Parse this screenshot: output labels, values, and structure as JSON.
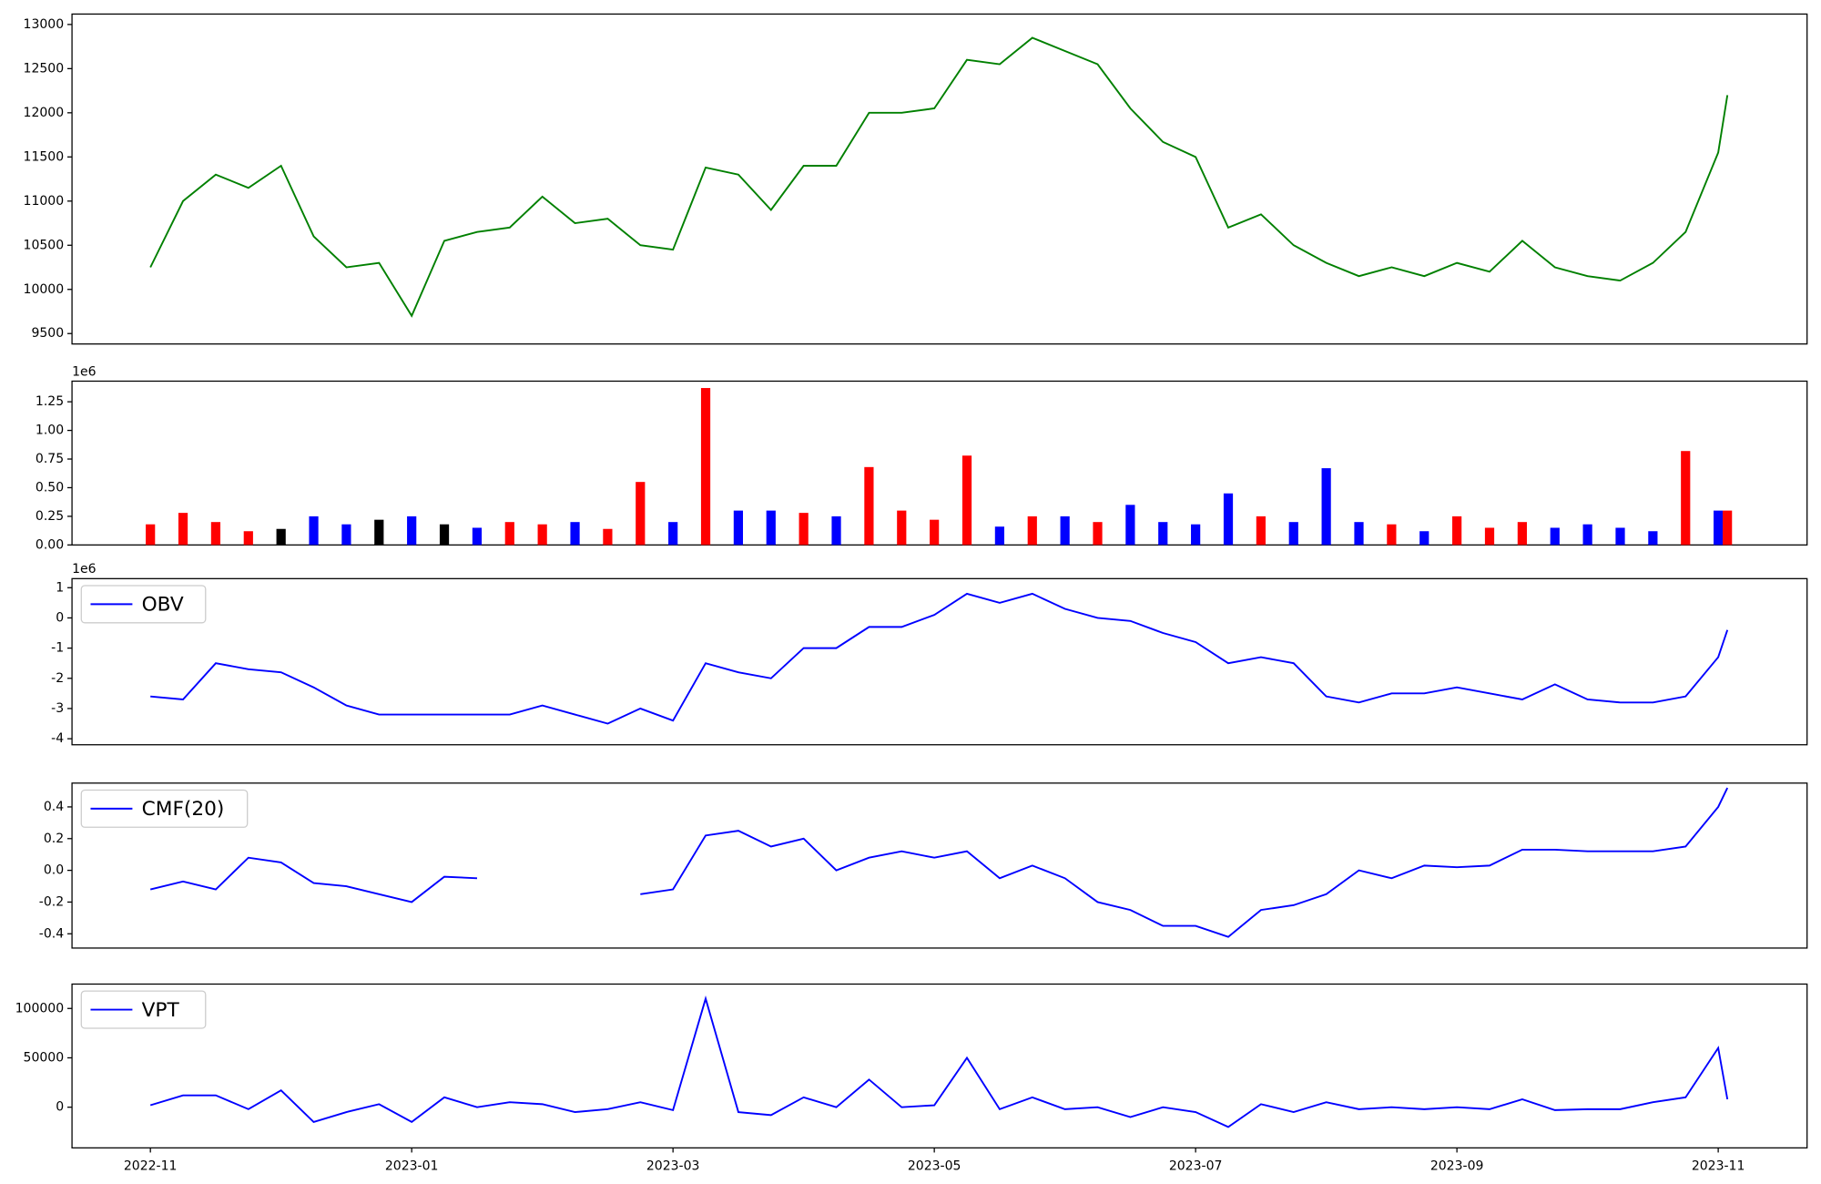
{
  "chart_data": [
    {
      "type": "line",
      "color": "green",
      "x": [
        0,
        0.25,
        0.5,
        0.75,
        1,
        1.25,
        1.5,
        1.75,
        2,
        2.25,
        2.5,
        2.75,
        3,
        3.25,
        3.5,
        3.75,
        4,
        4.25,
        4.5,
        4.75,
        5,
        5.25,
        5.5,
        5.75,
        6,
        6.25,
        6.5,
        6.75,
        7,
        7.25,
        7.5,
        7.75,
        8,
        8.25,
        8.5,
        8.75,
        9,
        9.25,
        9.5,
        9.75,
        10,
        10.25,
        10.5,
        10.75,
        11,
        11.25,
        11.5,
        11.75,
        12,
        12.07
      ],
      "values": [
        10250,
        11000,
        11300,
        11150,
        11400,
        10600,
        10250,
        10300,
        9700,
        10550,
        10650,
        10700,
        11050,
        10750,
        10800,
        10500,
        10450,
        11380,
        11300,
        10900,
        11400,
        11400,
        12000,
        12000,
        12050,
        12600,
        12550,
        12850,
        12700,
        12550,
        12050,
        11670,
        11500,
        10700,
        10850,
        10500,
        10300,
        10150,
        10250,
        10150,
        10300,
        10200,
        10550,
        10250,
        10150,
        10100,
        10300,
        10650,
        11550,
        12200
      ],
      "xlim": [
        -0.6,
        12.68
      ],
      "ylim": [
        9382,
        13118
      ],
      "yticks": [
        9500,
        10000,
        10500,
        11000,
        11500,
        12000,
        12500,
        13000
      ]
    },
    {
      "type": "bar",
      "offset_label": "1e6",
      "x": [
        0,
        0.25,
        0.5,
        0.75,
        1,
        1.25,
        1.5,
        1.75,
        2,
        2.25,
        2.5,
        2.75,
        3,
        3.25,
        3.5,
        3.75,
        4,
        4.25,
        4.5,
        4.75,
        5,
        5.25,
        5.5,
        5.75,
        6,
        6.25,
        6.5,
        6.75,
        7,
        7.25,
        7.5,
        7.75,
        8,
        8.25,
        8.5,
        8.75,
        9,
        9.25,
        9.5,
        9.75,
        10,
        10.25,
        10.5,
        10.75,
        11,
        11.25,
        11.5,
        11.75,
        12,
        12.07
      ],
      "values": [
        0.18,
        0.28,
        0.2,
        0.12,
        0.14,
        0.25,
        0.18,
        0.22,
        0.25,
        0.18,
        0.15,
        0.2,
        0.18,
        0.2,
        0.14,
        0.55,
        0.2,
        1.37,
        0.3,
        0.3,
        0.28,
        0.25,
        0.68,
        0.3,
        0.22,
        0.78,
        0.16,
        0.25,
        0.25,
        0.2,
        0.35,
        0.2,
        0.18,
        0.45,
        0.25,
        0.2,
        0.67,
        0.2,
        0.18,
        0.12,
        0.25,
        0.15,
        0.2,
        0.15,
        0.18,
        0.15,
        0.12,
        0.82,
        0.3,
        0.3
      ],
      "colors": [
        "red",
        "red",
        "red",
        "red",
        "black",
        "blue",
        "blue",
        "black",
        "blue",
        "black",
        "blue",
        "red",
        "red",
        "blue",
        "red",
        "red",
        "blue",
        "red",
        "blue",
        "blue",
        "red",
        "blue",
        "red",
        "red",
        "red",
        "red",
        "blue",
        "red",
        "blue",
        "red",
        "blue",
        "blue",
        "blue",
        "blue",
        "red",
        "blue",
        "blue",
        "blue",
        "red",
        "blue",
        "red",
        "red",
        "red",
        "blue",
        "blue",
        "blue",
        "blue",
        "red",
        "blue",
        "red"
      ],
      "xlim": [
        -0.6,
        12.68
      ],
      "ylim": [
        0,
        1.43
      ],
      "yticks": [
        {
          "value": 0,
          "label": "0.00"
        },
        {
          "value": 0.25,
          "label": "0.25"
        },
        {
          "value": 0.5,
          "label": "0.50"
        },
        {
          "value": 0.75,
          "label": "0.75"
        },
        {
          "value": 1,
          "label": "1.00"
        },
        {
          "value": 1.25,
          "label": "1.25"
        }
      ]
    },
    {
      "type": "line",
      "offset_label": "1e6",
      "legend": "upper left",
      "x": [
        0,
        0.25,
        0.5,
        0.75,
        1,
        1.25,
        1.5,
        1.75,
        2,
        2.25,
        2.5,
        2.75,
        3,
        3.25,
        3.5,
        3.75,
        4,
        4.25,
        4.5,
        4.75,
        5,
        5.25,
        5.5,
        5.75,
        6,
        6.25,
        6.5,
        6.75,
        7,
        7.25,
        7.5,
        7.75,
        8,
        8.25,
        8.5,
        8.75,
        9,
        9.25,
        9.5,
        9.75,
        10,
        10.25,
        10.5,
        10.75,
        11,
        11.25,
        11.5,
        11.75,
        12,
        12.07
      ],
      "series": [
        {
          "name": "OBV",
          "color": "blue",
          "values": [
            -2.6,
            -2.7,
            -1.5,
            -1.7,
            -1.8,
            -2.3,
            -2.9,
            -3.2,
            -3.2,
            -3.2,
            -3.2,
            -3.2,
            -2.9,
            -3.2,
            -3.5,
            -3.0,
            -3.4,
            -1.5,
            -1.8,
            -2.0,
            -1.0,
            -1.0,
            -0.3,
            -0.3,
            0.1,
            0.8,
            0.5,
            0.8,
            0.3,
            0.0,
            -0.1,
            -0.5,
            -0.8,
            -1.5,
            -1.3,
            -1.5,
            -2.6,
            -2.8,
            -2.5,
            -2.5,
            -2.3,
            -2.5,
            -2.7,
            -2.2,
            -2.7,
            -2.8,
            -2.8,
            -2.6,
            -1.3,
            -0.4
          ]
        }
      ],
      "xlim": [
        -0.6,
        12.68
      ],
      "ylim": [
        -4.2,
        1.3
      ],
      "yticks": [
        -4,
        -3,
        -2,
        -1,
        0,
        1
      ]
    },
    {
      "type": "line",
      "legend": "upper left",
      "x": [
        0,
        0.25,
        0.5,
        0.75,
        1,
        1.25,
        1.5,
        1.75,
        2,
        2.25,
        2.5,
        2.75,
        3,
        3.25,
        3.5,
        3.75,
        4,
        4.25,
        4.5,
        4.75,
        5,
        5.25,
        5.5,
        5.75,
        6,
        6.25,
        6.5,
        6.75,
        7,
        7.25,
        7.5,
        7.75,
        8,
        8.25,
        8.5,
        8.75,
        9,
        9.25,
        9.5,
        9.75,
        10,
        10.25,
        10.5,
        10.75,
        11,
        11.25,
        11.5,
        11.75,
        12,
        12.07
      ],
      "series": [
        {
          "name": "CMF(20)",
          "color": "blue",
          "values": [
            -0.12,
            -0.07,
            -0.12,
            0.08,
            0.05,
            -0.08,
            -0.1,
            -0.15,
            -0.2,
            -0.04,
            -0.05,
            null,
            null,
            null,
            null,
            -0.15,
            -0.12,
            0.22,
            0.25,
            0.15,
            0.2,
            0.0,
            0.08,
            0.12,
            0.08,
            0.12,
            -0.05,
            0.03,
            -0.05,
            -0.2,
            -0.25,
            -0.35,
            -0.35,
            -0.42,
            -0.25,
            -0.22,
            -0.15,
            0.0,
            -0.05,
            0.03,
            0.02,
            0.03,
            0.13,
            0.13,
            0.12,
            0.12,
            0.12,
            0.15,
            0.4,
            0.52
          ]
        }
      ],
      "xlim": [
        -0.6,
        12.68
      ],
      "ylim": [
        -0.49,
        0.55
      ],
      "yticks": [
        -0.4,
        -0.2,
        {
          "value": 0,
          "label": "0.0"
        },
        0.2,
        0.4
      ]
    },
    {
      "type": "line",
      "legend": "upper left",
      "x": [
        0,
        0.25,
        0.5,
        0.75,
        1,
        1.25,
        1.5,
        1.75,
        2,
        2.25,
        2.5,
        2.75,
        3,
        3.25,
        3.5,
        3.75,
        4,
        4.25,
        4.5,
        4.75,
        5,
        5.25,
        5.5,
        5.75,
        6,
        6.25,
        6.5,
        6.75,
        7,
        7.25,
        7.5,
        7.75,
        8,
        8.25,
        8.5,
        8.75,
        9,
        9.25,
        9.5,
        9.75,
        10,
        10.25,
        10.5,
        10.75,
        11,
        11.25,
        11.5,
        11.75,
        12,
        12.07
      ],
      "series": [
        {
          "name": "VPT",
          "color": "blue",
          "values": [
            2000,
            12000,
            12000,
            -2000,
            17000,
            -15000,
            -5000,
            3000,
            -15000,
            10000,
            0,
            5000,
            3000,
            -5000,
            -2000,
            5000,
            -3000,
            110000,
            -5000,
            -8000,
            10000,
            0,
            28000,
            0,
            2000,
            50000,
            -2000,
            10000,
            -2000,
            0,
            -10000,
            0,
            -5000,
            -20000,
            3000,
            -5000,
            5000,
            -2000,
            0,
            -2000,
            0,
            -2000,
            8000,
            -3000,
            -2000,
            -2000,
            5000,
            10000,
            60000,
            8000
          ]
        }
      ],
      "xlim": [
        -0.6,
        12.68
      ],
      "ylim": [
        -41200,
        124700
      ],
      "yticks": [
        0,
        50000,
        100000
      ],
      "xticks": [
        {
          "value": 0,
          "label": "2022-11"
        },
        {
          "value": 2,
          "label": "2023-01"
        },
        {
          "value": 4,
          "label": "2023-03"
        },
        {
          "value": 6,
          "label": "2023-05"
        },
        {
          "value": 8,
          "label": "2023-07"
        },
        {
          "value": 10,
          "label": "2023-09"
        },
        {
          "value": 12,
          "label": "2023-11"
        }
      ]
    }
  ]
}
